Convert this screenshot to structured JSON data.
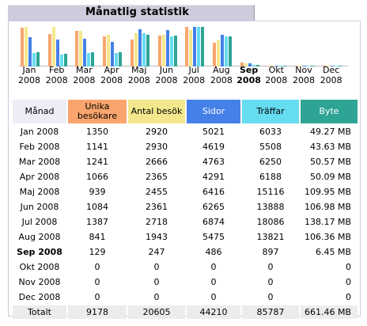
{
  "title": "Månatlig statistik",
  "colors": {
    "visitors": "#f9a56d",
    "visits": "#f3e78d",
    "pages": "#4580e8",
    "hits": "#66dcf1",
    "bytes": "#2ea495",
    "header_month": "#ecedf6",
    "tab": "#ccccdd"
  },
  "table": {
    "headers": {
      "month": "Månad",
      "visitors": "Unika besökare",
      "visits": "Antal besök",
      "pages": "Sidor",
      "hits": "Träffar",
      "bytes": "Byte"
    },
    "rows": [
      {
        "month": "Jan 2008",
        "visitors": "1350",
        "visits": "2920",
        "pages": "5021",
        "hits": "6033",
        "bytes": "49.27 MB",
        "current": false
      },
      {
        "month": "Feb 2008",
        "visitors": "1141",
        "visits": "2930",
        "pages": "4619",
        "hits": "5508",
        "bytes": "43.63 MB",
        "current": false
      },
      {
        "month": "Mar 2008",
        "visitors": "1241",
        "visits": "2666",
        "pages": "4763",
        "hits": "6250",
        "bytes": "50.57 MB",
        "current": false
      },
      {
        "month": "Apr 2008",
        "visitors": "1066",
        "visits": "2365",
        "pages": "4291",
        "hits": "6188",
        "bytes": "50.09 MB",
        "current": false
      },
      {
        "month": "Maj 2008",
        "visitors": "939",
        "visits": "2455",
        "pages": "6416",
        "hits": "15116",
        "bytes": "109.95 MB",
        "current": false
      },
      {
        "month": "Jun 2008",
        "visitors": "1084",
        "visits": "2361",
        "pages": "6265",
        "hits": "13888",
        "bytes": "106.98 MB",
        "current": false
      },
      {
        "month": "Jul 2008",
        "visitors": "1387",
        "visits": "2718",
        "pages": "6874",
        "hits": "18086",
        "bytes": "138.17 MB",
        "current": false
      },
      {
        "month": "Aug 2008",
        "visitors": "841",
        "visits": "1943",
        "pages": "5475",
        "hits": "13821",
        "bytes": "106.36 MB",
        "current": false
      },
      {
        "month": "Sep 2008",
        "visitors": "129",
        "visits": "247",
        "pages": "486",
        "hits": "897",
        "bytes": "6.45 MB",
        "current": true
      },
      {
        "month": "Okt 2008",
        "visitors": "0",
        "visits": "0",
        "pages": "0",
        "hits": "0",
        "bytes": "0",
        "current": false
      },
      {
        "month": "Nov 2008",
        "visitors": "0",
        "visits": "0",
        "pages": "0",
        "hits": "0",
        "bytes": "0",
        "current": false
      },
      {
        "month": "Dec 2008",
        "visitors": "0",
        "visits": "0",
        "pages": "0",
        "hits": "0",
        "bytes": "0",
        "current": false
      }
    ],
    "total": {
      "label": "Totalt",
      "visitors": "9178",
      "visits": "20605",
      "pages": "44210",
      "hits": "85787",
      "bytes": "661.46 MB"
    }
  },
  "chart_data": {
    "type": "bar",
    "categories": [
      "Jan 2008",
      "Feb 2008",
      "Mar 2008",
      "Apr 2008",
      "Maj 2008",
      "Jun 2008",
      "Jul 2008",
      "Aug 2008",
      "Sep 2008",
      "Okt 2008",
      "Nov 2008",
      "Dec 2008"
    ],
    "current_category": "Sep 2008",
    "tick_labels": [
      {
        "month": "Jan",
        "year": "2008"
      },
      {
        "month": "Feb",
        "year": "2008"
      },
      {
        "month": "Mar",
        "year": "2008"
      },
      {
        "month": "Apr",
        "year": "2008"
      },
      {
        "month": "Maj",
        "year": "2008"
      },
      {
        "month": "Jun",
        "year": "2008"
      },
      {
        "month": "Jul",
        "year": "2008"
      },
      {
        "month": "Aug",
        "year": "2008"
      },
      {
        "month": "Sep",
        "year": "2008"
      },
      {
        "month": "Okt",
        "year": "2008"
      },
      {
        "month": "Nov",
        "year": "2008"
      },
      {
        "month": "Dec",
        "year": "2008"
      }
    ],
    "series": [
      {
        "key": "visitors",
        "values": [
          1350,
          1141,
          1241,
          1066,
          939,
          1084,
          1387,
          841,
          129,
          0,
          0,
          0
        ]
      },
      {
        "key": "visits",
        "values": [
          2920,
          2930,
          2666,
          2365,
          2455,
          2361,
          2718,
          1943,
          247,
          0,
          0,
          0
        ]
      },
      {
        "key": "pages",
        "values": [
          5021,
          4619,
          4763,
          4291,
          6416,
          6265,
          6874,
          5475,
          486,
          0,
          0,
          0
        ]
      },
      {
        "key": "hits",
        "values": [
          6033,
          5508,
          6250,
          6188,
          15116,
          13888,
          18086,
          13821,
          897,
          0,
          0,
          0
        ]
      },
      {
        "key": "bytes",
        "values": [
          49.27,
          43.63,
          50.57,
          50.09,
          109.95,
          106.98,
          138.17,
          106.36,
          6.45,
          0,
          0,
          0
        ]
      }
    ],
    "grid": false,
    "legend": "none"
  }
}
